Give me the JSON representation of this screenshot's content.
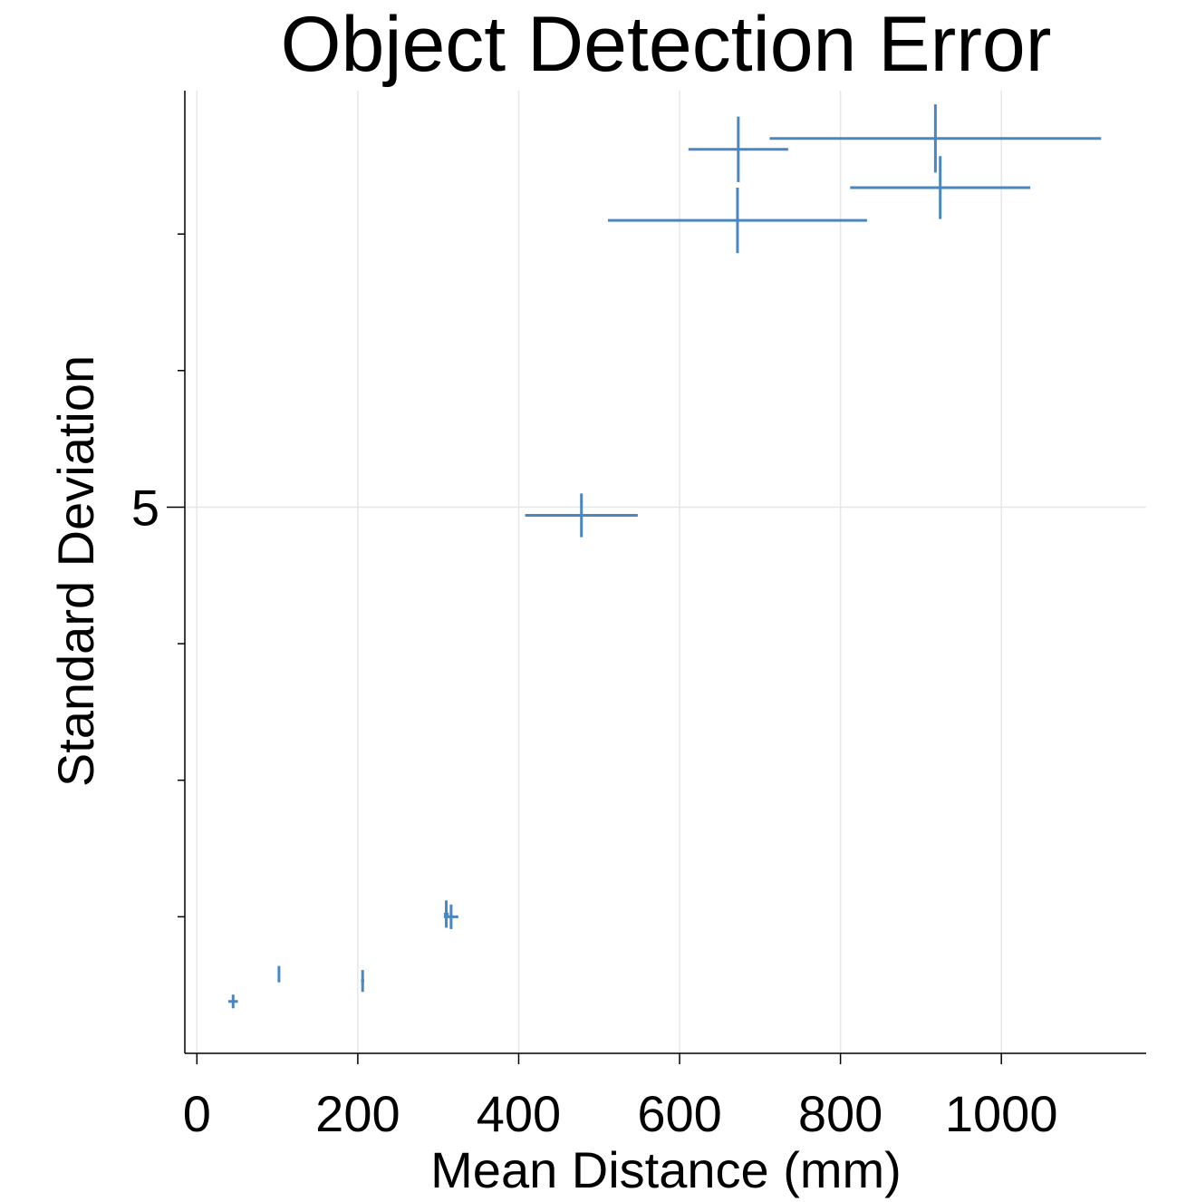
{
  "chart_data": {
    "type": "scatter",
    "title": "Object Detection Error",
    "xlabel": "Mean Distance (mm)",
    "ylabel": "Standard Deviation",
    "xlim": [
      -15,
      1180
    ],
    "ylim": [
      1.0,
      8.05
    ],
    "xticks": [
      0,
      200,
      400,
      600,
      800,
      1000
    ],
    "yticks_labeled": [
      5
    ],
    "yticks_minor": [
      2,
      3,
      4,
      6,
      7
    ],
    "grid": true,
    "color": "#4a86c0",
    "points": [
      {
        "x": 45,
        "y": 1.38,
        "xerr": 6,
        "yerr": 0.05
      },
      {
        "x": 102,
        "y": 1.58,
        "xerr": 1,
        "yerr": 0.06
      },
      {
        "x": 206,
        "y": 1.53,
        "xerr": 2,
        "yerr": 0.08
      },
      {
        "x": 310,
        "y": 2.02,
        "xerr": 3,
        "yerr": 0.1
      },
      {
        "x": 316,
        "y": 2.0,
        "xerr": 9,
        "yerr": 0.09
      },
      {
        "x": 478,
        "y": 4.94,
        "xerr": 70,
        "yerr": 0.16
      },
      {
        "x": 673,
        "y": 7.62,
        "xerr": 62,
        "yerr": 0.24
      },
      {
        "x": 918,
        "y": 7.7,
        "xerr": 206,
        "yerr": 0.25
      },
      {
        "x": 924,
        "y": 7.34,
        "xerr": 112,
        "yerr": 0.23
      },
      {
        "x": 672,
        "y": 7.1,
        "xerr": 161,
        "yerr": 0.24
      }
    ]
  }
}
